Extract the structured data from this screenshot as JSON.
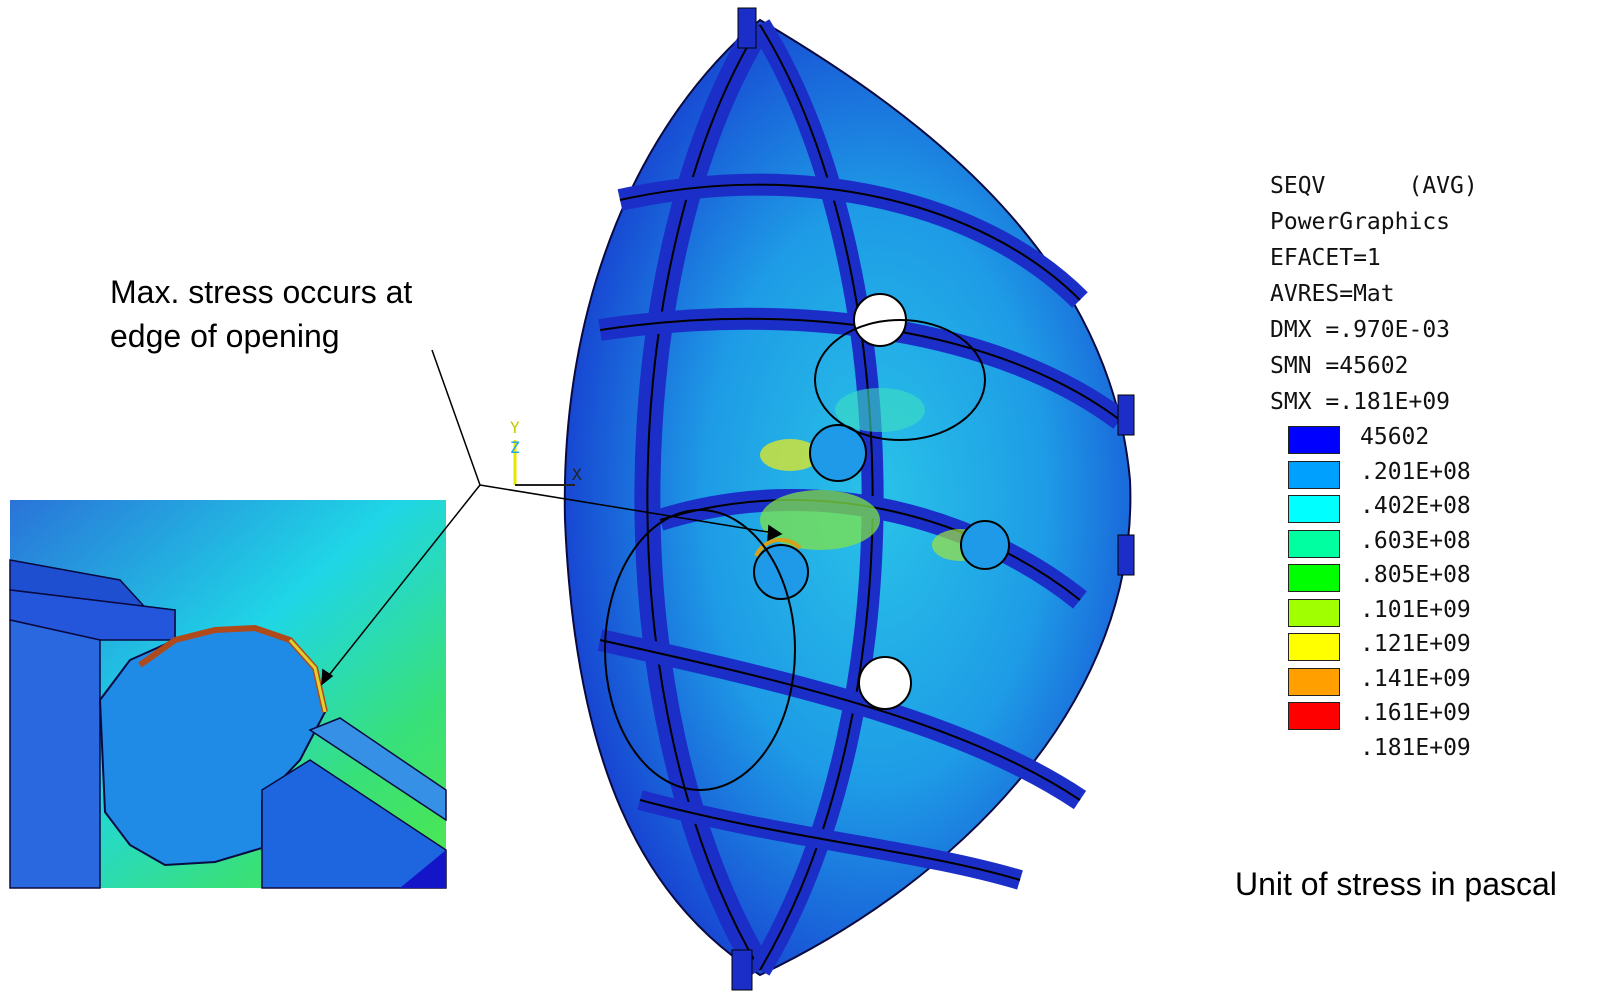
{
  "annotations": {
    "callout": "Max. stress occurs at edge of opening",
    "unit_note": "Unit of stress in pascal"
  },
  "triad": {
    "y": "Y",
    "z": "Z",
    "x": "X"
  },
  "legend": {
    "header": [
      "SEQV      (AVG)",
      "PowerGraphics",
      "EFACET=1",
      "AVRES=Mat",
      "DMX =.970E-03",
      "SMN =45602",
      "SMX =.181E+09"
    ],
    "contour_values": [
      "45602",
      ".201E+08",
      ".402E+08",
      ".603E+08",
      ".805E+08",
      ".101E+09",
      ".121E+09",
      ".141E+09",
      ".161E+09",
      ".181E+09"
    ],
    "contour_colors": [
      "#0000ff",
      "#00a0ff",
      "#00ffff",
      "#00ffa0",
      "#00ff00",
      "#a0ff00",
      "#ffff00",
      "#ffa000",
      "#ff0000"
    ]
  },
  "colors": {
    "model_blue": "#1733d6",
    "model_cyan": "#1eb4e6",
    "stress_green": "#39d64b",
    "stress_yellow": "#e6e61a",
    "stress_red": "#d72d0a"
  }
}
